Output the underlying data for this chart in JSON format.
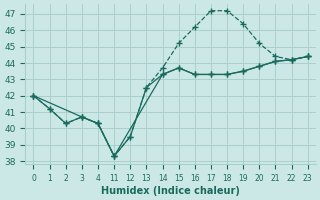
{
  "background_color": "#cce8e6",
  "grid_color": "#aad0cc",
  "line_color": "#1a6b5e",
  "xlabel": "Humidex (Indice chaleur)",
  "ylim": [
    37.8,
    47.6
  ],
  "yticks": [
    38,
    39,
    40,
    41,
    42,
    43,
    44,
    45,
    46,
    47
  ],
  "hours": [
    0,
    1,
    2,
    3,
    4,
    11,
    12,
    13,
    14,
    15,
    16,
    17,
    18,
    19,
    20,
    21,
    22,
    23
  ],
  "line1": {
    "hours": [
      0,
      1,
      2,
      3,
      4,
      11,
      12,
      13,
      14,
      15,
      16,
      17,
      18,
      19,
      20,
      21,
      22,
      23
    ],
    "y": [
      42.0,
      41.2,
      40.3,
      40.7,
      40.3,
      38.3,
      39.5,
      42.5,
      43.7,
      45.2,
      46.2,
      47.2,
      47.2,
      46.4,
      45.2,
      44.4,
      44.2,
      44.4
    ],
    "style": "--"
  },
  "line2": {
    "hours": [
      0,
      1,
      2,
      3,
      4,
      11,
      12,
      13,
      14,
      15,
      16,
      17,
      18,
      19,
      20,
      21,
      22,
      23
    ],
    "y": [
      42.0,
      41.2,
      40.3,
      40.7,
      40.3,
      38.3,
      39.5,
      42.5,
      43.3,
      43.7,
      43.3,
      43.3,
      43.3,
      43.5,
      43.8,
      44.1,
      44.2,
      44.4
    ],
    "style": "-"
  },
  "line3": {
    "hours": [
      0,
      3,
      4,
      11,
      14,
      15,
      16,
      17,
      18,
      19,
      20,
      21,
      22,
      23
    ],
    "y": [
      42.0,
      40.7,
      40.3,
      38.3,
      43.3,
      43.7,
      43.3,
      43.3,
      43.3,
      43.5,
      43.8,
      44.1,
      44.2,
      44.4
    ],
    "style": "-"
  },
  "xtick_labels": [
    "0",
    "1",
    "2",
    "3",
    "4",
    "11",
    "12",
    "13",
    "14",
    "15",
    "16",
    "17",
    "18",
    "19",
    "20",
    "21",
    "22",
    "23"
  ]
}
